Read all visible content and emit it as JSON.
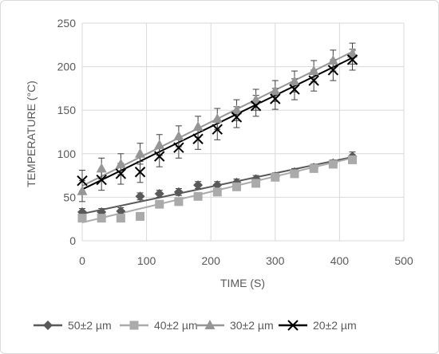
{
  "chart_data": {
    "type": "scatter",
    "title": "",
    "xlabel": "TIME (S)",
    "ylabel": "TEMPERATURE (°C)",
    "xlim": [
      0,
      500
    ],
    "ylim": [
      0,
      250
    ],
    "xticks": [
      0,
      100,
      200,
      300,
      400,
      500
    ],
    "yticks": [
      0,
      50,
      100,
      150,
      200,
      250
    ],
    "grid": "both",
    "legend_position": "bottom",
    "x": [
      0,
      30,
      60,
      90,
      120,
      150,
      180,
      210,
      240,
      270,
      300,
      330,
      360,
      390,
      420
    ],
    "series": [
      {
        "name": "50±2 µm",
        "marker": "diamond",
        "color": "#595959",
        "values": [
          33,
          33,
          34,
          51,
          54,
          56,
          64,
          64,
          67,
          71,
          74,
          79,
          84,
          89,
          97
        ],
        "error": [
          4,
          4,
          4,
          4,
          4,
          4,
          4,
          4,
          4,
          4,
          4,
          4,
          4,
          4,
          5
        ],
        "trendline": [
          31,
          97
        ]
      },
      {
        "name": "40±2 µm",
        "marker": "square",
        "color": "#aaaaaa",
        "values": [
          26,
          26,
          26,
          28,
          42,
          45,
          51,
          56,
          62,
          66,
          73,
          77,
          83,
          88,
          93
        ],
        "error": [
          3,
          3,
          3,
          3,
          3,
          3,
          3,
          3,
          3,
          3,
          3,
          3,
          3,
          3,
          3
        ],
        "trendline": [
          21,
          96
        ]
      },
      {
        "name": "30±2 µm",
        "marker": "triangle",
        "color": "#969696",
        "values": [
          57,
          83,
          88,
          100,
          110,
          120,
          131,
          140,
          150,
          162,
          172,
          183,
          195,
          207,
          215
        ],
        "error": [
          12,
          12,
          12,
          12,
          12,
          12,
          12,
          12,
          12,
          12,
          12,
          12,
          12,
          12,
          12
        ],
        "trendline": [
          63,
          219
        ]
      },
      {
        "name": "20±2 µm",
        "marker": "x",
        "color": "#000000",
        "values": [
          69,
          70,
          77,
          79,
          97,
          107,
          117,
          128,
          142,
          155,
          163,
          174,
          184,
          196,
          208
        ],
        "error": [
          12,
          12,
          12,
          12,
          12,
          12,
          12,
          12,
          12,
          12,
          12,
          12,
          12,
          12,
          12
        ],
        "trendline": [
          59,
          212
        ]
      }
    ]
  }
}
